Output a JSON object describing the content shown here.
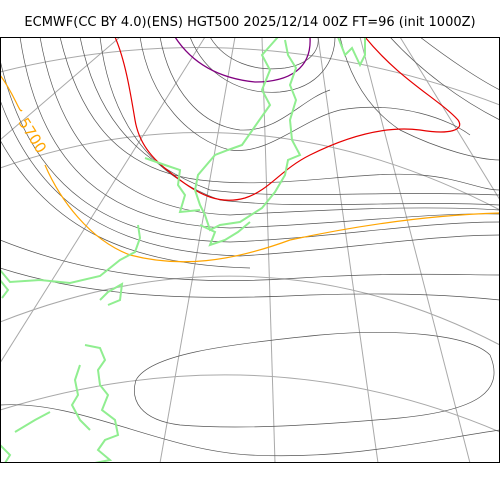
{
  "title": "ECMWF(CC BY 4.0)(ENS) HGT500 2025/12/14 00Z FT=96 (init 1000Z)",
  "colors": {
    "frame": "#000000",
    "graticule": "#a9a9a9",
    "contour": "#555555",
    "contour_5700": "#ffa500",
    "contour_red": "#e60000",
    "contour_purple": "#800080",
    "coastline": "#90ee90"
  },
  "labels": {
    "contour_5700": "5700"
  }
}
